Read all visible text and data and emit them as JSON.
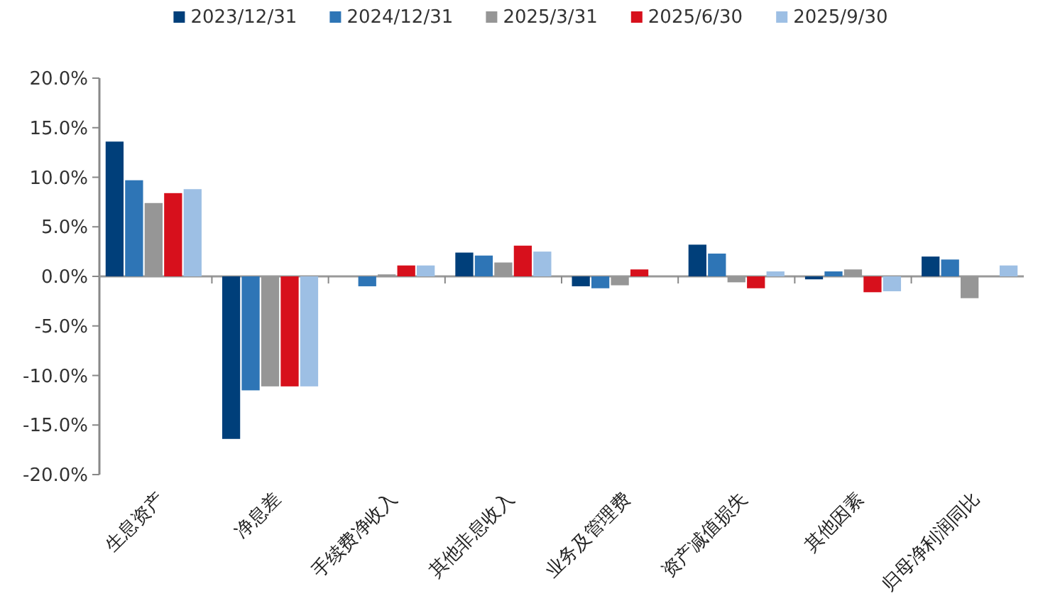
{
  "chart_data": {
    "type": "bar",
    "categories": [
      "生息资产",
      "净息差",
      "手续费净收入",
      "其他非息收入",
      "业务及管理费",
      "资产减值损失",
      "其他因素",
      "归母净利润同比"
    ],
    "series": [
      {
        "name": "2023/12/31",
        "color": "#003f7a",
        "values": [
          13.6,
          -16.4,
          0,
          2.4,
          -1.0,
          3.2,
          -0.3,
          2.0
        ]
      },
      {
        "name": "2024/12/31",
        "color": "#2e75b6",
        "values": [
          9.7,
          -11.5,
          -1.0,
          2.1,
          -1.2,
          2.3,
          0.5,
          1.7
        ]
      },
      {
        "name": "2025/3/31",
        "color": "#969696",
        "values": [
          7.4,
          -11.1,
          0.2,
          1.4,
          -0.9,
          -0.6,
          0.7,
          -2.2
        ]
      },
      {
        "name": "2025/6/30",
        "color": "#d7101c",
        "values": [
          8.4,
          -11.1,
          1.1,
          3.1,
          0.7,
          -1.2,
          -1.6,
          0
        ]
      },
      {
        "name": "2025/9/30",
        "color": "#9dbfe4",
        "values": [
          8.8,
          -11.1,
          1.1,
          2.5,
          0,
          0.5,
          -1.5,
          1.1
        ]
      }
    ],
    "ylim": [
      -20,
      20
    ],
    "yticks": [
      {
        "value": -20,
        "label": "-20.0%"
      },
      {
        "value": -15,
        "label": "-15.0%"
      },
      {
        "value": -10,
        "label": "-10.0%"
      },
      {
        "value": -5,
        "label": "-5.0%"
      },
      {
        "value": 0,
        "label": "0.0%"
      },
      {
        "value": 5,
        "label": "5.0%"
      },
      {
        "value": 10,
        "label": "10.0%"
      },
      {
        "value": 15,
        "label": "15.0%"
      },
      {
        "value": 20,
        "label": "20.0%"
      }
    ],
    "legend": "top"
  }
}
